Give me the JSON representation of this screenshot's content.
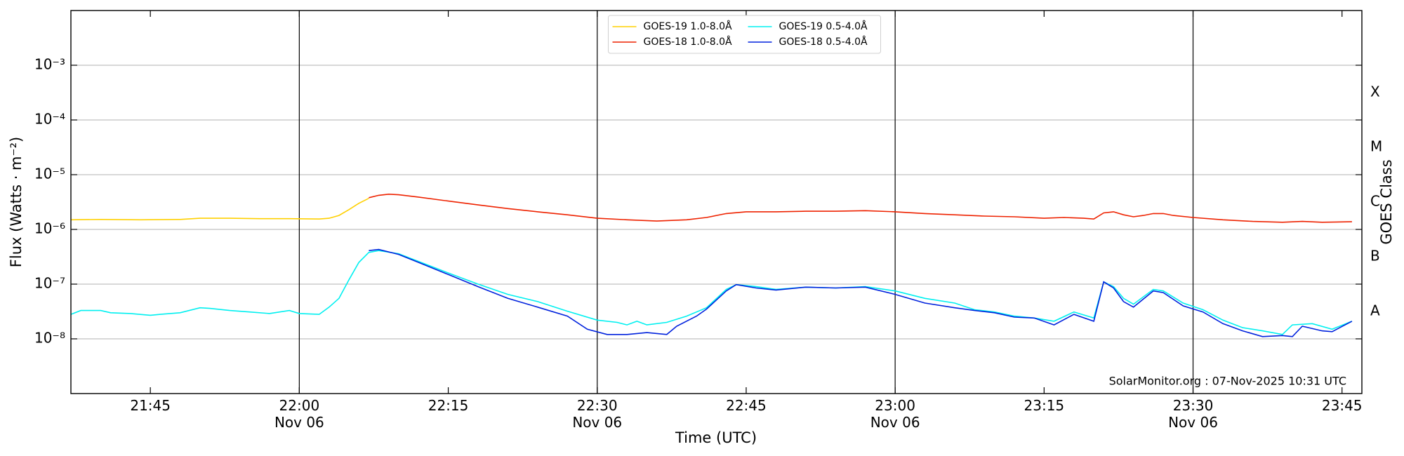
{
  "chart_data": {
    "type": "line",
    "yscale": "log",
    "grid": "y",
    "legend": "upper center",
    "xlabel": "Time (UTC)",
    "ylabel": "Flux (Watts · m⁻²)",
    "y2label": "GOES Class",
    "annotation": "SolarMonitor.org : 07-Nov-2025 10:31 UTC",
    "xlim": [
      "21:37",
      "23:47"
    ],
    "xticks": [
      "21:45",
      {
        "value": "22:00",
        "label": "22:00\nNov 06"
      },
      "22:15",
      {
        "value": "22:30",
        "label": "22:30\nNov 06"
      },
      "22:45",
      {
        "value": "23:00",
        "label": "23:00\nNov 06"
      },
      "23:15",
      {
        "value": "23:30",
        "label": "23:30\nNov 06"
      },
      "23:45"
    ],
    "vlines": [
      "22:00",
      "22:30",
      "23:00",
      "23:30"
    ],
    "ylim": [
      1e-09,
      0.01
    ],
    "yticks": [
      {
        "value": 1e-08,
        "label": "10⁻⁸"
      },
      {
        "value": 1e-07,
        "label": "10⁻⁷"
      },
      {
        "value": 1e-06,
        "label": "10⁻⁶"
      },
      {
        "value": 1e-05,
        "label": "10⁻⁵"
      },
      {
        "value": 0.0001,
        "label": "10⁻⁴"
      },
      {
        "value": 0.001,
        "label": "10⁻³"
      }
    ],
    "y2lim": [
      1e-09,
      0.01
    ],
    "y2ticks": [
      {
        "value": 3.16e-08,
        "label": "A"
      },
      {
        "value": 3.16e-07,
        "label": "B"
      },
      {
        "value": 3.16e-06,
        "label": "C"
      },
      {
        "value": 3.16e-05,
        "label": "M"
      },
      {
        "value": 0.000316,
        "label": "X"
      }
    ],
    "series": [
      {
        "name": "GOES-19 1.0-8.0Å",
        "color": "#ffd000",
        "x": [
          "21:37",
          "21:40",
          "21:44",
          "21:48",
          "21:50",
          "21:53",
          "21:56",
          "21:59",
          "22:02",
          "22:03",
          "22:04",
          "22:05",
          "22:06",
          "22:07"
        ],
        "values": [
          1.5e-06,
          1.52e-06,
          1.5e-06,
          1.52e-06,
          1.6e-06,
          1.6e-06,
          1.57e-06,
          1.57e-06,
          1.55e-06,
          1.6e-06,
          1.8e-06,
          2.3e-06,
          3e-06,
          3.7e-06
        ]
      },
      {
        "name": "GOES-18 1.0-8.0Å",
        "color": "#ee2200",
        "x": [
          "22:07",
          "22:08",
          "22:09",
          "22:10",
          "22:12",
          "22:15",
          "22:18",
          "22:21",
          "22:24",
          "22:27",
          "22:30",
          "22:33",
          "22:36",
          "22:39",
          "22:41",
          "22:43",
          "22:45",
          "22:48",
          "22:51",
          "22:54",
          "22:57",
          "23:00",
          "23:03",
          "23:06",
          "23:09",
          "23:12",
          "23:15",
          "23:17",
          "23:19",
          "23:20",
          "23:21",
          "23:22",
          "23:23",
          "23:24",
          "23:25",
          "23:26",
          "23:27",
          "23:28",
          "23:30",
          "23:33",
          "23:36",
          "23:39",
          "23:41",
          "23:43",
          "23:46"
        ],
        "values": [
          3.8e-06,
          4.2e-06,
          4.4e-06,
          4.3e-06,
          3.9e-06,
          3.3e-06,
          2.8e-06,
          2.4e-06,
          2.1e-06,
          1.85e-06,
          1.6e-06,
          1.5e-06,
          1.42e-06,
          1.5e-06,
          1.65e-06,
          1.95e-06,
          2.1e-06,
          2.1e-06,
          2.15e-06,
          2.15e-06,
          2.2e-06,
          2.1e-06,
          1.95e-06,
          1.85e-06,
          1.75e-06,
          1.7e-06,
          1.6e-06,
          1.65e-06,
          1.6e-06,
          1.55e-06,
          2e-06,
          2.1e-06,
          1.85e-06,
          1.7e-06,
          1.8e-06,
          1.95e-06,
          1.95e-06,
          1.8e-06,
          1.65e-06,
          1.5e-06,
          1.4e-06,
          1.35e-06,
          1.4e-06,
          1.35e-06,
          1.38e-06
        ]
      },
      {
        "name": "GOES-19 0.5-4.0Å",
        "color": "#00f0f0",
        "x": [
          "21:37",
          "21:38",
          "21:40",
          "21:41",
          "21:43",
          "21:45",
          "21:46",
          "21:48",
          "21:50",
          "21:51",
          "21:53",
          "21:55",
          "21:57",
          "21:59",
          "22:00",
          "22:02",
          "22:03",
          "22:04",
          "22:05",
          "22:06",
          "22:07",
          "22:08",
          "22:10",
          "22:12",
          "22:15",
          "22:18",
          "22:21",
          "22:24",
          "22:27",
          "22:30",
          "22:32",
          "22:33",
          "22:34",
          "22:35",
          "22:37",
          "22:39",
          "22:41",
          "22:43",
          "22:44",
          "22:46",
          "22:48",
          "22:51",
          "22:54",
          "22:57",
          "23:00",
          "23:03",
          "23:06",
          "23:08",
          "23:10",
          "23:12",
          "23:14",
          "23:16",
          "23:18",
          "23:20",
          "23:21",
          "23:22",
          "23:23",
          "23:24",
          "23:26",
          "23:27",
          "23:29",
          "23:31",
          "23:33",
          "23:35",
          "23:37",
          "23:39",
          "23:40",
          "23:42",
          "23:44",
          "23:46"
        ],
        "values": [
          2.8e-08,
          3.3e-08,
          3.3e-08,
          3e-08,
          2.9e-08,
          2.7e-08,
          2.8e-08,
          3e-08,
          3.7e-08,
          3.6e-08,
          3.3e-08,
          3.1e-08,
          2.9e-08,
          3.3e-08,
          2.9e-08,
          2.8e-08,
          3.8e-08,
          5.5e-08,
          1.2e-07,
          2.5e-07,
          3.8e-07,
          4.1e-07,
          3.6e-07,
          2.6e-07,
          1.6e-07,
          1e-07,
          6.5e-08,
          4.8e-08,
          3.2e-08,
          2.2e-08,
          2e-08,
          1.8e-08,
          2.1e-08,
          1.8e-08,
          2e-08,
          2.6e-08,
          3.7e-08,
          8e-08,
          9.8e-08,
          9e-08,
          8e-08,
          8.8e-08,
          8.5e-08,
          9e-08,
          7.5e-08,
          5.5e-08,
          4.5e-08,
          3.4e-08,
          3.1e-08,
          2.6e-08,
          2.4e-08,
          2.1e-08,
          3.1e-08,
          2.4e-08,
          1.1e-07,
          9e-08,
          5.5e-08,
          4.3e-08,
          8e-08,
          7.5e-08,
          4.5e-08,
          3.4e-08,
          2.2e-08,
          1.6e-08,
          1.4e-08,
          1.2e-08,
          1.8e-08,
          1.9e-08,
          1.5e-08,
          2.1e-08
        ]
      },
      {
        "name": "GOES-18 0.5-4.0Å",
        "color": "#0022dd",
        "x": [
          "22:07",
          "22:08",
          "22:10",
          "22:12",
          "22:15",
          "22:18",
          "22:21",
          "22:24",
          "22:27",
          "22:29",
          "22:31",
          "22:33",
          "22:35",
          "22:37",
          "22:38",
          "22:40",
          "22:41",
          "22:43",
          "22:44",
          "22:46",
          "22:48",
          "22:51",
          "22:54",
          "22:57",
          "23:00",
          "23:03",
          "23:06",
          "23:08",
          "23:10",
          "23:12",
          "23:14",
          "23:16",
          "23:18",
          "23:20",
          "23:21",
          "23:22",
          "23:23",
          "23:24",
          "23:26",
          "23:27",
          "23:29",
          "23:31",
          "23:33",
          "23:35",
          "23:37",
          "23:39",
          "23:40",
          "23:41",
          "23:43",
          "23:44",
          "23:46"
        ],
        "values": [
          4.1e-07,
          4.3e-07,
          3.5e-07,
          2.5e-07,
          1.5e-07,
          9e-08,
          5.5e-08,
          3.8e-08,
          2.6e-08,
          1.5e-08,
          1.2e-08,
          1.2e-08,
          1.3e-08,
          1.2e-08,
          1.7e-08,
          2.6e-08,
          3.5e-08,
          7.5e-08,
          9.8e-08,
          8.5e-08,
          7.8e-08,
          8.8e-08,
          8.5e-08,
          8.8e-08,
          6.5e-08,
          4.5e-08,
          3.7e-08,
          3.3e-08,
          3e-08,
          2.5e-08,
          2.4e-08,
          1.8e-08,
          2.8e-08,
          2.1e-08,
          1.1e-07,
          8.5e-08,
          4.8e-08,
          3.8e-08,
          7.5e-08,
          7e-08,
          4e-08,
          3.1e-08,
          1.9e-08,
          1.4e-08,
          1.1e-08,
          1.15e-08,
          1.1e-08,
          1.7e-08,
          1.4e-08,
          1.35e-08,
          2.1e-08
        ]
      }
    ]
  }
}
